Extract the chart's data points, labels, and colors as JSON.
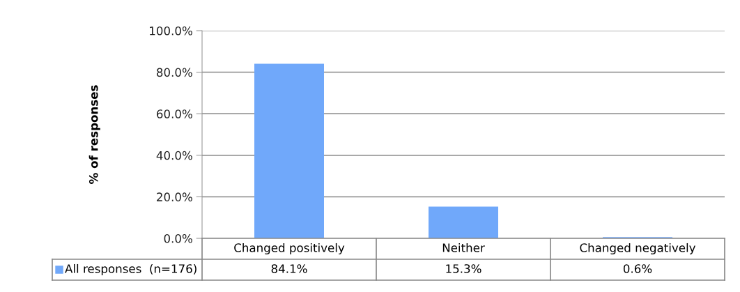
{
  "chart_data": {
    "type": "bar",
    "ylabel": "% of responses",
    "categories": [
      "Changed positively",
      "Neither",
      "Changed negatively"
    ],
    "series": [
      {
        "name": "All responses  (n=176)",
        "color": "#70a8fa",
        "values": [
          84.1,
          15.3,
          0.6
        ],
        "value_labels": [
          "84.1%",
          "15.3%",
          "0.6%"
        ]
      }
    ],
    "ylim": [
      0,
      100
    ],
    "yticks": [
      {
        "value": 0,
        "label": "0.0%"
      },
      {
        "value": 20,
        "label": "20.0%"
      },
      {
        "value": 40,
        "label": "40.0%"
      },
      {
        "value": 60,
        "label": "60.0%"
      },
      {
        "value": 80,
        "label": "80.0%"
      },
      {
        "value": 100,
        "label": "100.0%"
      }
    ],
    "grid": "y"
  }
}
